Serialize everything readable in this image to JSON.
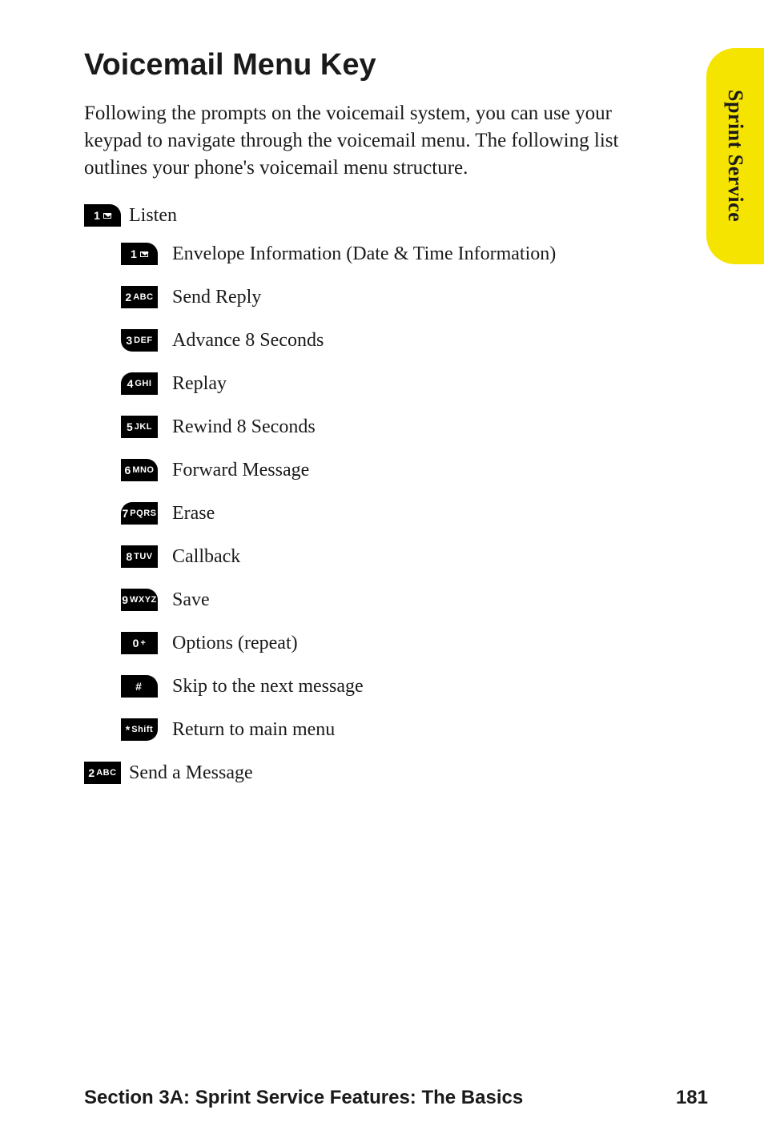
{
  "sideTab": "Sprint Service",
  "title": "Voicemail Menu Key",
  "intro": "Following the prompts on the voicemail system, you can use your keypad to navigate through the voicemail menu. The following list outlines your phone's voicemail menu structure.",
  "topItems": [
    {
      "key": "1",
      "glyph": "envelope",
      "shape": "tr",
      "text": "Listen"
    }
  ],
  "subItems": [
    {
      "key": "1",
      "sub": "",
      "glyph": "envelope",
      "shape": "tr",
      "text": "Envelope Information (Date & Time Information)"
    },
    {
      "key": "2",
      "sub": "ABC",
      "shape": "",
      "text": "Send Reply"
    },
    {
      "key": "3",
      "sub": "DEF",
      "shape": "bl",
      "text": "Advance 8 Seconds"
    },
    {
      "key": "4",
      "sub": "GHI",
      "shape": "tl",
      "text": "Replay"
    },
    {
      "key": "5",
      "sub": "JKL",
      "shape": "",
      "text": "Rewind 8 Seconds"
    },
    {
      "key": "6",
      "sub": "MNO",
      "shape": "tr",
      "text": "Forward Message"
    },
    {
      "key": "7",
      "sub": "PQRS",
      "shape": "tl",
      "text": "Erase"
    },
    {
      "key": "8",
      "sub": "TUV",
      "shape": "",
      "text": "Callback"
    },
    {
      "key": "9",
      "sub": "WXYZ",
      "shape": "tr",
      "text": "Save"
    },
    {
      "key": "0",
      "sub": "+",
      "shape": "",
      "text": "Options (repeat)"
    },
    {
      "key": "#",
      "sub": "",
      "shape": "tr",
      "text": "Skip to the next message"
    },
    {
      "key": "*",
      "sub": "Shift",
      "shape": "br",
      "text": "Return to main menu"
    }
  ],
  "bottomItems": [
    {
      "key": "2",
      "sub": "ABC",
      "shape": "",
      "text": "Send a Message"
    }
  ],
  "footer": {
    "section": "Section 3A: Sprint Service Features: The Basics",
    "page": "181"
  },
  "colors": {
    "tab": "#f5e400",
    "keyBg": "#000000",
    "keyFg": "#ffffff",
    "text": "#1a1a1a",
    "background": "#ffffff"
  },
  "typography": {
    "titleSize": 38,
    "introSize": 25,
    "rowSize": 24,
    "footerSize": 24,
    "tabSize": 26
  }
}
